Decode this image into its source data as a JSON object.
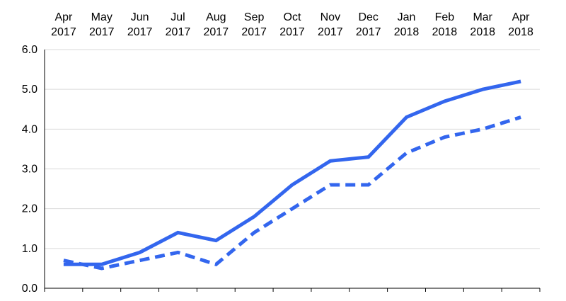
{
  "chart_data": {
    "type": "line",
    "title": "",
    "xlabel": "",
    "ylabel": "",
    "x_tick_position": "top",
    "categories": [
      [
        "Apr",
        "2017"
      ],
      [
        "May",
        "2017"
      ],
      [
        "Jun",
        "2017"
      ],
      [
        "Jul",
        "2017"
      ],
      [
        "Aug",
        "2017"
      ],
      [
        "Sep",
        "2017"
      ],
      [
        "Oct",
        "2017"
      ],
      [
        "Nov",
        "2017"
      ],
      [
        "Dec",
        "2017"
      ],
      [
        "Jan",
        "2018"
      ],
      [
        "Feb",
        "2018"
      ],
      [
        "Mar",
        "2018"
      ],
      [
        "Apr",
        "2018"
      ]
    ],
    "ylim": [
      0,
      6
    ],
    "yticks": [
      "0.0",
      "1.0",
      "2.0",
      "3.0",
      "4.0",
      "5.0",
      "6.0"
    ],
    "grid": true,
    "legend": "none",
    "series": [
      {
        "style": "solid",
        "color": "#3366ee",
        "values": [
          0.6,
          0.6,
          0.9,
          1.4,
          1.2,
          1.8,
          2.6,
          3.2,
          3.3,
          4.3,
          4.7,
          5.0,
          5.2
        ]
      },
      {
        "style": "dashed",
        "color": "#3366ee",
        "values": [
          0.7,
          0.5,
          0.7,
          0.9,
          0.6,
          1.4,
          2.0,
          2.6,
          2.6,
          3.4,
          3.8,
          4.0,
          4.3
        ]
      }
    ]
  }
}
